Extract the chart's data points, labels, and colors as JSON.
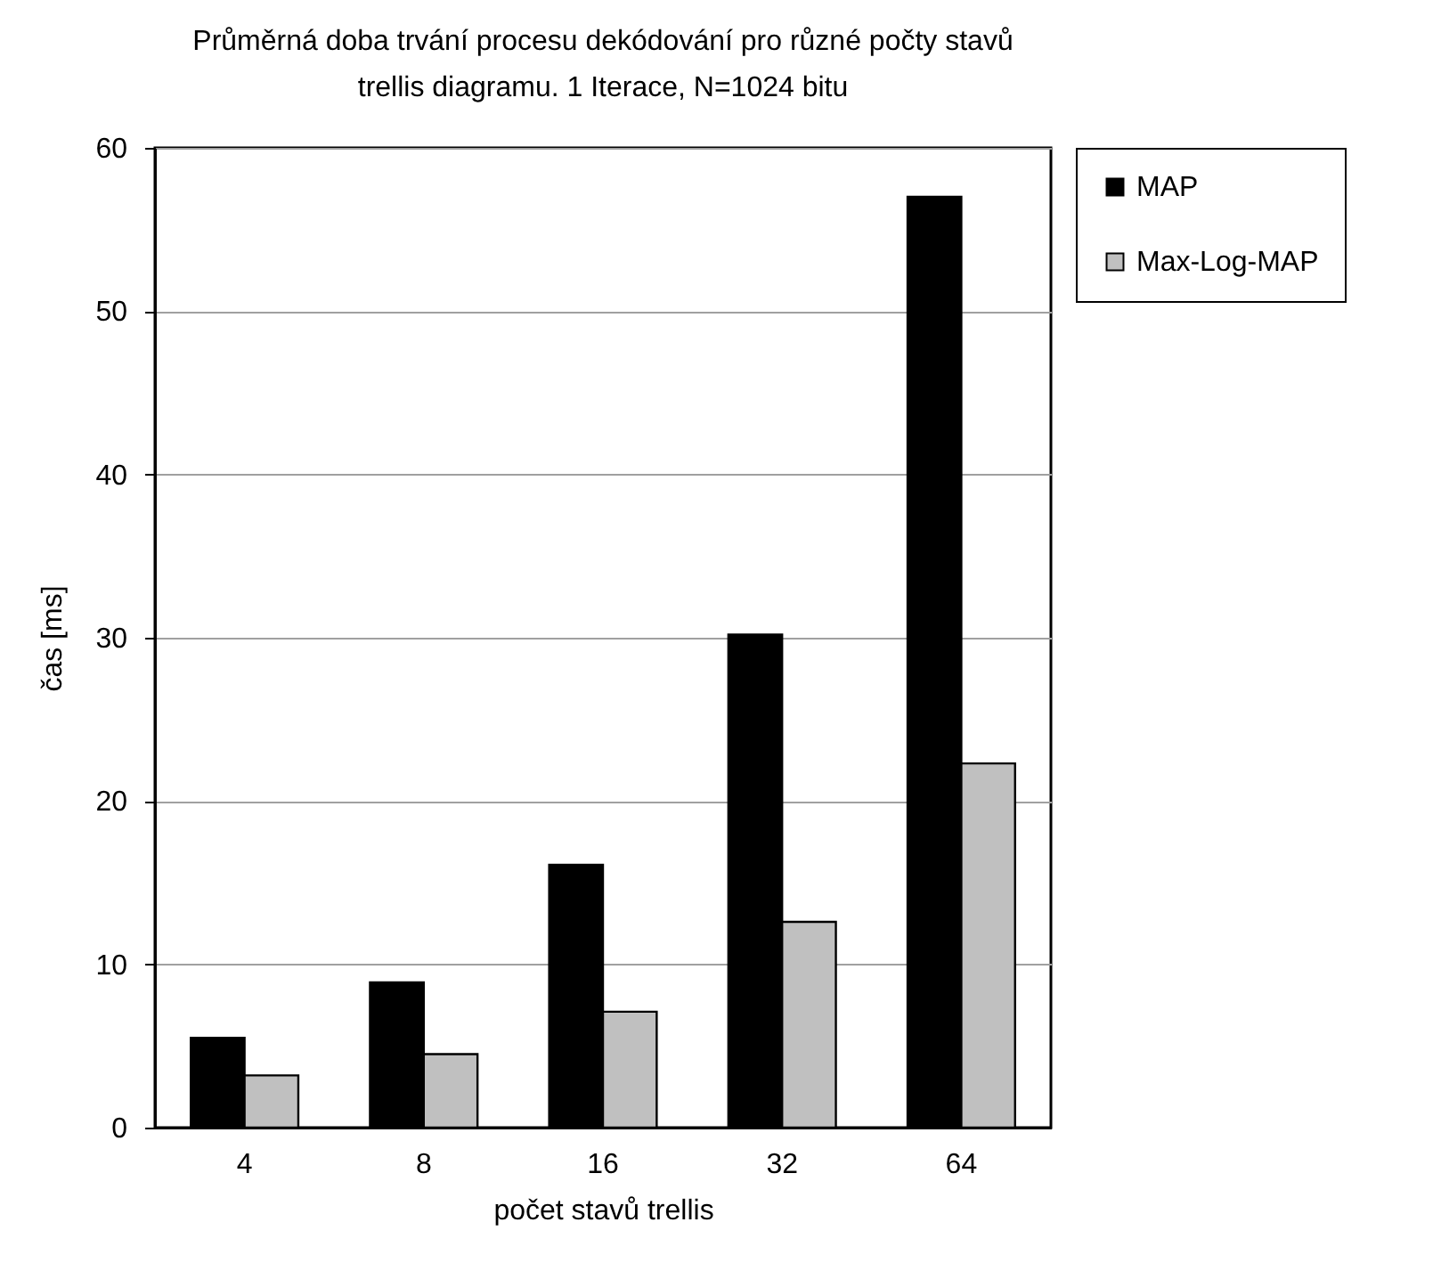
{
  "chart_data": {
    "type": "bar",
    "title": "Průměrná doba trvání procesu dekódování pro různé počty stavů\ntrellis diagramu. 1 Iterace, N=1024 bitu",
    "xlabel": "počet stavů trellis",
    "ylabel": "čas [ms]",
    "categories": [
      "4",
      "8",
      "16",
      "32",
      "64"
    ],
    "series": [
      {
        "name": "MAP",
        "color": "#000000",
        "values": [
          5.5,
          8.9,
          16.1,
          30.2,
          57
        ]
      },
      {
        "name": "Max-Log-MAP",
        "color": "#c0c0c0",
        "values": [
          3.2,
          4.5,
          7.1,
          12.6,
          22.3
        ]
      }
    ],
    "ylim": [
      0,
      60
    ],
    "yticks": [
      0,
      10,
      20,
      30,
      40,
      50,
      60
    ],
    "grid": "y",
    "legend": "top right"
  }
}
